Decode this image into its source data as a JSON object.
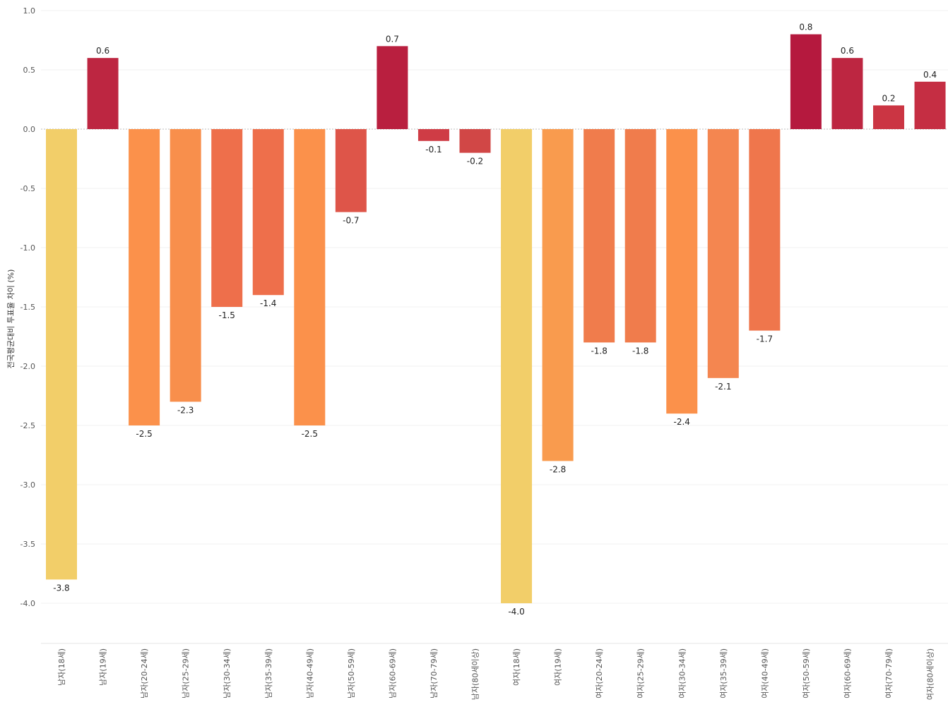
{
  "chart_data": {
    "type": "bar",
    "title": "",
    "xlabel": "",
    "ylabel": "전국평균대비 투표율 차이 (%)",
    "ylim": [
      -4.3,
      1.0
    ],
    "yticks": [
      1.0,
      0.5,
      0.0,
      -0.5,
      -1.0,
      -1.5,
      -2.0,
      -2.5,
      -3.0,
      -3.5,
      -4.0
    ],
    "ytick_labels": [
      "1.0",
      "0.5",
      "0.0",
      "-0.5",
      "-1.0",
      "-1.5",
      "-2.0",
      "-2.5",
      "-3.0",
      "-3.5",
      "-4.0"
    ],
    "grid": true,
    "categories": [
      "남자(18세)",
      "남자(19세)",
      "남자(20-24세)",
      "남자(25-29세)",
      "남자(30-34세)",
      "남자(35-39세)",
      "남자(40-49세)",
      "남자(50-59세)",
      "남자(60-69세)",
      "남자(70-79세)",
      "남자(80세이상)",
      "여자(18세)",
      "여자(19세)",
      "여자(20-24세)",
      "여자(25-29세)",
      "여자(30-34세)",
      "여자(35-39세)",
      "여자(40-49세)",
      "여자(50-59세)",
      "여자(60-69세)",
      "여자(70-79세)",
      "여자(80세이상)"
    ],
    "values": [
      -3.8,
      0.6,
      -2.5,
      -2.3,
      -1.5,
      -1.4,
      -2.5,
      -0.7,
      0.7,
      -0.1,
      -0.2,
      -4.0,
      -2.8,
      -1.8,
      -1.8,
      -2.4,
      -2.1,
      -1.7,
      0.8,
      0.6,
      0.2,
      0.4
    ],
    "value_labels": [
      "-3.8",
      "0.6",
      "-2.5",
      "-2.3",
      "-1.5",
      "-1.4",
      "-2.5",
      "-0.7",
      "0.7",
      "-0.1",
      "-0.2",
      "-4.0",
      "-2.8",
      "-1.8",
      "-1.8",
      "-2.4",
      "-2.1",
      "-1.7",
      "0.8",
      "0.6",
      "0.2",
      "0.4"
    ],
    "colors": [
      "#f2ce69",
      "#bd2641",
      "#fb914b",
      "#f88f4c",
      "#ee6f4b",
      "#ee6f4b",
      "#fb914b",
      "#de5549",
      "#b91f3f",
      "#cf3c45",
      "#d14746",
      "#f2ce69",
      "#f99b4e",
      "#f07c4c",
      "#f07c4c",
      "#fb914b",
      "#f48650",
      "#ef764c",
      "#b5193e",
      "#bd2641",
      "#cb3543",
      "#c52e43"
    ]
  }
}
